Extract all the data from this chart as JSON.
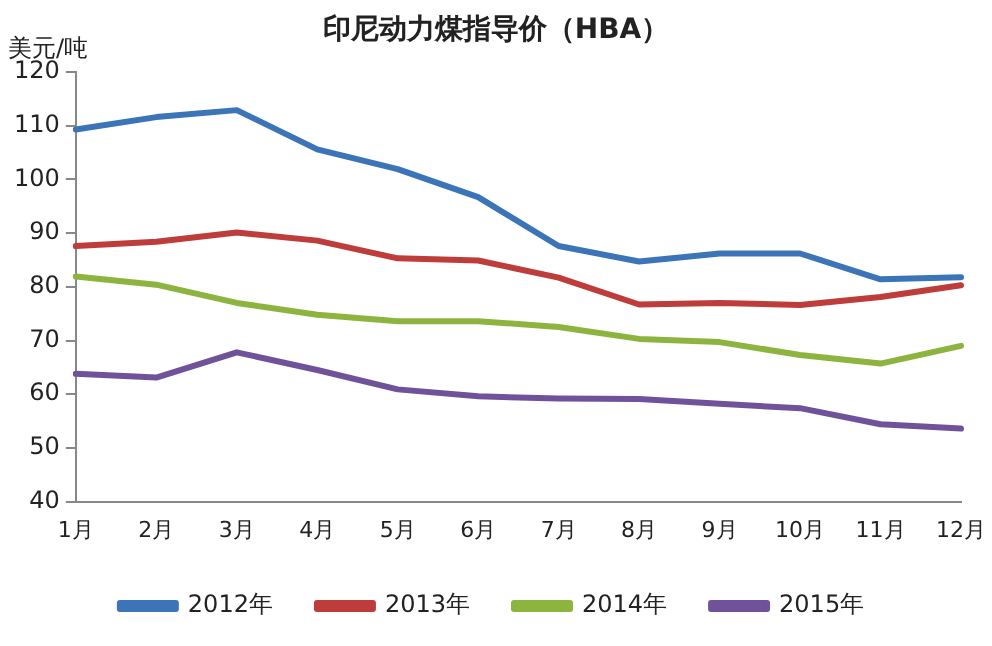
{
  "chart_data": {
    "type": "line",
    "title": "印尼动力煤指导价（HBA）",
    "ylabel": "美元/吨",
    "categories": [
      "1月",
      "2月",
      "3月",
      "4月",
      "5月",
      "6月",
      "7月",
      "8月",
      "9月",
      "10月",
      "11月",
      "12月"
    ],
    "series": [
      {
        "name": "2012年",
        "color": "#3c74b8",
        "values": [
          109.3,
          111.6,
          112.9,
          105.6,
          101.9,
          96.7,
          87.6,
          84.7,
          86.2,
          86.2,
          81.4,
          81.8
        ]
      },
      {
        "name": "2013年",
        "color": "#be3c3a",
        "values": [
          87.6,
          88.4,
          90.1,
          88.6,
          85.3,
          84.9,
          81.7,
          76.7,
          77.0,
          76.6,
          78.1,
          80.3
        ]
      },
      {
        "name": "2014年",
        "color": "#8db43f",
        "values": [
          81.9,
          80.4,
          77.0,
          74.8,
          73.6,
          73.6,
          72.5,
          70.3,
          69.7,
          67.3,
          65.7,
          69.0
        ]
      },
      {
        "name": "2015年",
        "color": "#70529a",
        "values": [
          63.8,
          63.1,
          67.8,
          64.5,
          60.9,
          59.6,
          59.2,
          59.1,
          58.2,
          57.4,
          54.4,
          53.6
        ]
      }
    ],
    "ylim": [
      40,
      120
    ],
    "yticks": [
      40,
      50,
      60,
      70,
      80,
      90,
      100,
      110,
      120
    ],
    "grid": false,
    "legend": "bottom",
    "marker": "none",
    "line_style": "solid"
  }
}
